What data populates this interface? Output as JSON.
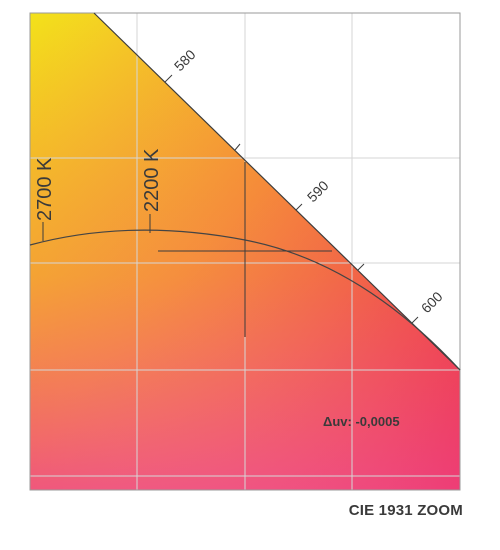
{
  "diagram": {
    "caption": "CIE 1931 ZOOM",
    "delta_uv_text": "Δuv: -0,0005",
    "wavelength_labels": [
      "580",
      "590",
      "600"
    ],
    "cct_labels": [
      "2700 K",
      "2200 K"
    ],
    "colors": {
      "top_left": "#f3e21a",
      "mid": "#f6921e",
      "bottom_left": "#f05a8a",
      "bottom_right": "#eb1546",
      "line": "#555555",
      "grid": "#d8d8d8",
      "text": "#3a3a3a"
    }
  }
}
